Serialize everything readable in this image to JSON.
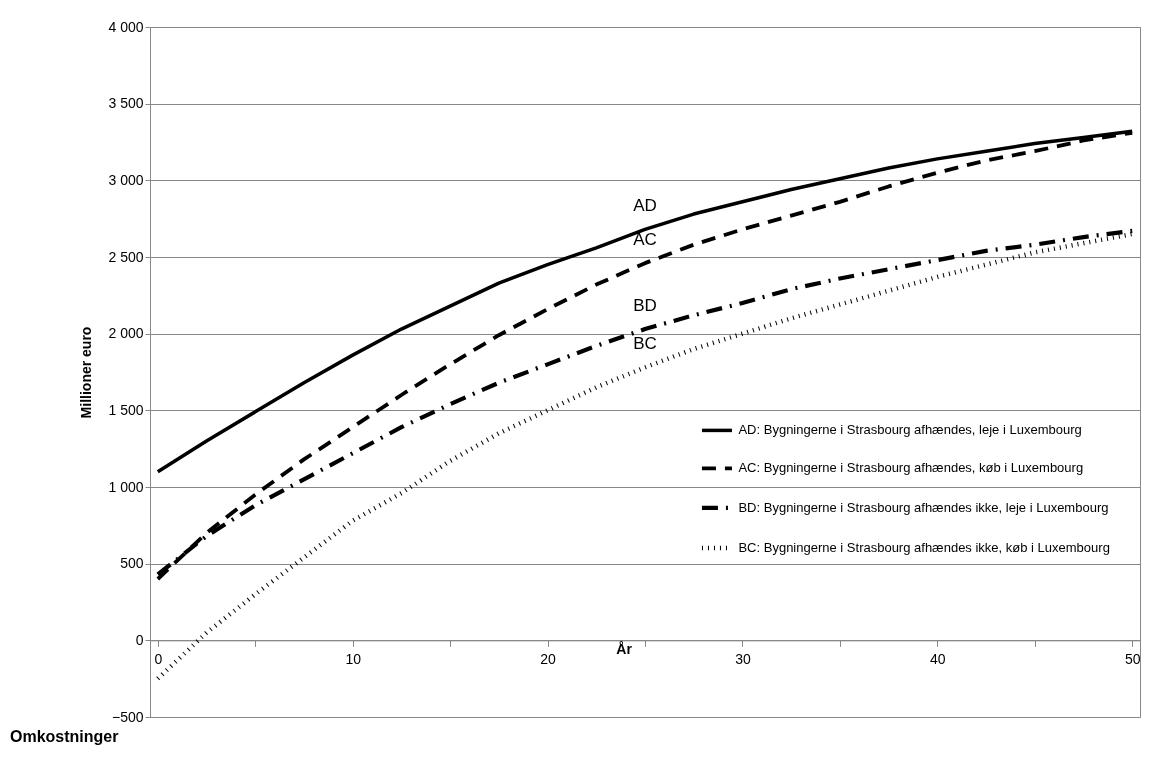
{
  "chart_data": {
    "type": "line",
    "xlabel": "År",
    "ylabel": "Millioner euro",
    "x": [
      0,
      2.5,
      5,
      7.5,
      10,
      12.5,
      15,
      17.5,
      20,
      22.5,
      25,
      27.5,
      30,
      32.5,
      35,
      37.5,
      40,
      42.5,
      45,
      47.5,
      50
    ],
    "series": [
      {
        "name": "AD: Bygningerne i Strasbourg afhændes, leje i Luxembourg",
        "color": "#000000",
        "line_style": "solid",
        "values": [
          1100,
          1300,
          1490,
          1680,
          1860,
          2030,
          2180,
          2330,
          2450,
          2560,
          2680,
          2780,
          2860,
          2940,
          3010,
          3080,
          3140,
          3190,
          3240,
          3280,
          3320
        ]
      },
      {
        "name": "AC: Bygningerne i Strasbourg afhændes, køb i Luxembourg",
        "color": "#000000",
        "line_style": "dashed",
        "values": [
          400,
          700,
          950,
          1180,
          1390,
          1600,
          1800,
          1990,
          2160,
          2320,
          2460,
          2580,
          2680,
          2770,
          2860,
          2960,
          3050,
          3130,
          3190,
          3260,
          3310
        ]
      },
      {
        "name": "BD: Bygningerne i Strasbourg afhændes ikke, leje i Luxembourg",
        "color": "#000000",
        "line_style": "dashdot",
        "values": [
          430,
          680,
          880,
          1050,
          1220,
          1390,
          1540,
          1680,
          1800,
          1920,
          2030,
          2120,
          2200,
          2290,
          2360,
          2420,
          2480,
          2540,
          2580,
          2630,
          2670
        ]
      },
      {
        "name": "BC: Bygningerne i Strasbourg afhændes ikke, køb i Luxembourg",
        "color": "#000000",
        "line_style": "dotted",
        "values": [
          -250,
          50,
          300,
          540,
          780,
          960,
          1170,
          1350,
          1500,
          1650,
          1780,
          1900,
          2000,
          2100,
          2190,
          2280,
          2370,
          2450,
          2530,
          2590,
          2650
        ]
      }
    ],
    "xlim": [
      -0.4,
      50.4
    ],
    "xticks": [
      0,
      {
        "value": 5,
        "label": null
      },
      10,
      {
        "value": 15,
        "label": null
      },
      20,
      {
        "value": 25,
        "label": null
      },
      30,
      {
        "value": 35,
        "label": null
      },
      40,
      {
        "value": 45,
        "label": null
      },
      50
    ],
    "ylim": [
      -500,
      4000
    ],
    "yticks": [
      -500,
      0,
      500,
      {
        "value": 1000,
        "label": "1 000"
      },
      {
        "value": 1500,
        "label": "1 500"
      },
      {
        "value": 2000,
        "label": "2 000"
      },
      {
        "value": 2500,
        "label": "2 500"
      },
      {
        "value": 3000,
        "label": "3 000"
      },
      {
        "value": 3500,
        "label": "3 500"
      },
      {
        "value": 4000,
        "label": "4 000"
      }
    ],
    "grid": "y",
    "legend": "right",
    "annotations": [
      "AD",
      "AC",
      "BD",
      "BC",
      "Omkostninger"
    ]
  }
}
